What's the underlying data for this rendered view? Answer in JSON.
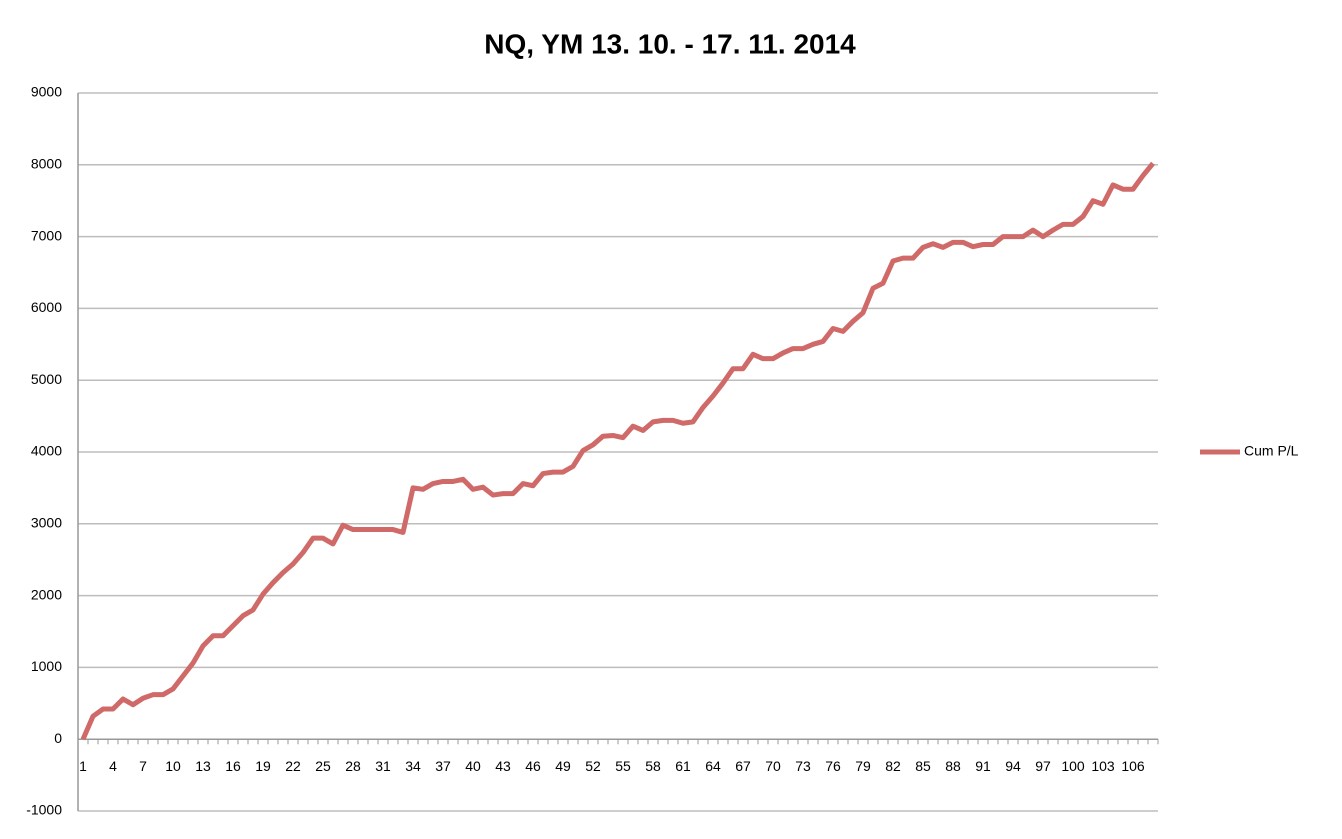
{
  "chart_data": {
    "type": "line",
    "title": "NQ, YM 13. 10. - 17. 11. 2014",
    "categories": [
      "1",
      null,
      null,
      "4",
      null,
      null,
      "7",
      null,
      null,
      "10",
      null,
      null,
      "13",
      null,
      null,
      "16",
      null,
      null,
      "19",
      null,
      null,
      "22",
      null,
      null,
      "25",
      null,
      null,
      "28",
      null,
      null,
      "31",
      null,
      null,
      "34",
      null,
      null,
      "37",
      null,
      null,
      "40",
      null,
      null,
      "43",
      null,
      null,
      "46",
      null,
      null,
      "49",
      null,
      null,
      "52",
      null,
      null,
      "55",
      null,
      null,
      "58",
      null,
      null,
      "61",
      null,
      null,
      "64",
      null,
      null,
      "67",
      null,
      null,
      "70",
      null,
      null,
      "73",
      null,
      null,
      "76",
      null,
      null,
      "79",
      null,
      null,
      "82",
      null,
      null,
      "85",
      null,
      null,
      "88",
      null,
      null,
      "91",
      null,
      null,
      "94",
      null,
      null,
      "97",
      null,
      null,
      "100",
      null,
      null,
      "103",
      null,
      null,
      "106",
      null,
      null
    ],
    "series": [
      {
        "name": "Cum P/L",
        "color": "#d06a68",
        "values": [
          0,
          320,
          420,
          420,
          560,
          480,
          570,
          620,
          620,
          700,
          880,
          1060,
          1300,
          1440,
          1440,
          1580,
          1720,
          1800,
          2020,
          2180,
          2320,
          2440,
          2600,
          2800,
          2800,
          2720,
          2980,
          2920,
          2920,
          2920,
          2920,
          2920,
          2880,
          3500,
          3480,
          3560,
          3590,
          3590,
          3620,
          3480,
          3510,
          3400,
          3420,
          3420,
          3560,
          3530,
          3700,
          3720,
          3720,
          3800,
          4020,
          4100,
          4220,
          4230,
          4200,
          4360,
          4300,
          4420,
          4440,
          4440,
          4400,
          4420,
          4620,
          4780,
          4960,
          5160,
          5160,
          5360,
          5300,
          5300,
          5380,
          5440,
          5440,
          5500,
          5540,
          5720,
          5680,
          5820,
          5940,
          6280,
          6350,
          6660,
          6700,
          6700,
          6850,
          6900,
          6850,
          6920,
          6920,
          6860,
          6890,
          6890,
          7000,
          7000,
          7000,
          7090,
          7000,
          7090,
          7170,
          7170,
          7280,
          7500,
          7450,
          7720,
          7660,
          7660,
          7850,
          8020
        ]
      }
    ],
    "ylim": [
      -1000,
      9000
    ],
    "yticks": [
      -1000,
      0,
      1000,
      2000,
      3000,
      4000,
      5000,
      6000,
      7000,
      8000,
      9000
    ],
    "grid": true,
    "legend": "right"
  }
}
